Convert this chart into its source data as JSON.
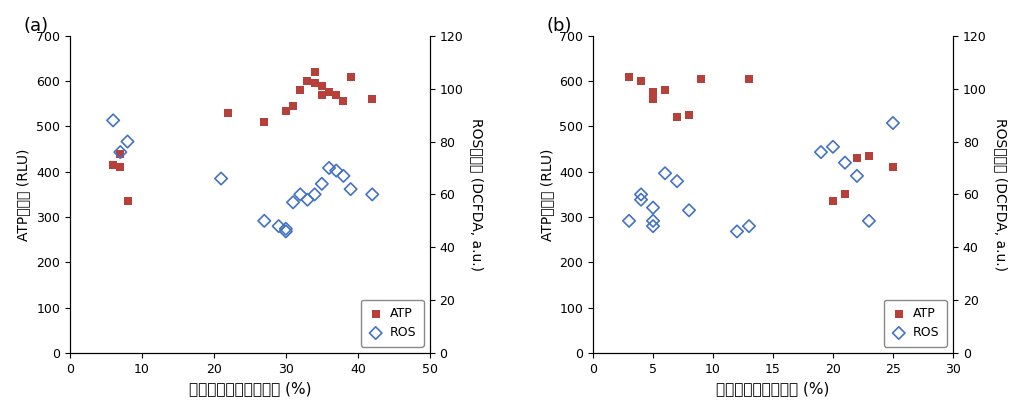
{
  "panel_a": {
    "label": "(a)",
    "xlabel": "線維型ミトコンドリア (%)",
    "xlim": [
      0,
      50
    ],
    "xticks": [
      0,
      10,
      20,
      30,
      40,
      50
    ],
    "atp_x": [
      6,
      7,
      7,
      8,
      22,
      27,
      30,
      31,
      32,
      33,
      34,
      34,
      35,
      35,
      36,
      37,
      38,
      39,
      42
    ],
    "atp_y": [
      415,
      410,
      440,
      335,
      530,
      510,
      535,
      545,
      580,
      600,
      620,
      595,
      590,
      570,
      575,
      570,
      555,
      610,
      560
    ],
    "ros_x": [
      6,
      7,
      8,
      21,
      27,
      29,
      30,
      30,
      31,
      32,
      33,
      34,
      35,
      36,
      37,
      38,
      39,
      42
    ],
    "ros_y": [
      88,
      76,
      80,
      66,
      50,
      48,
      47,
      46,
      57,
      60,
      58,
      60,
      64,
      70,
      69,
      67,
      62,
      60
    ]
  },
  "panel_b": {
    "label": "(b)",
    "xlabel": "丸型ミトコンドリア (%)",
    "xlim": [
      0,
      30
    ],
    "xticks": [
      0,
      5,
      10,
      15,
      20,
      25,
      30
    ],
    "atp_x": [
      3,
      4,
      5,
      5,
      6,
      7,
      8,
      9,
      13,
      20,
      21,
      22,
      23,
      25
    ],
    "atp_y": [
      610,
      600,
      560,
      575,
      580,
      520,
      525,
      605,
      605,
      335,
      350,
      430,
      435,
      410
    ],
    "ros_x": [
      3,
      4,
      4,
      5,
      5,
      5,
      6,
      7,
      8,
      12,
      13,
      19,
      20,
      21,
      22,
      23,
      25
    ],
    "ros_y": [
      50,
      58,
      60,
      55,
      50,
      48,
      68,
      65,
      54,
      46,
      48,
      76,
      78,
      72,
      67,
      50,
      87
    ]
  },
  "ylim_atp": [
    0,
    700
  ],
  "yticks_atp": [
    0,
    100,
    200,
    300,
    400,
    500,
    600,
    700
  ],
  "ylim_ros": [
    0,
    120
  ],
  "yticks_ros": [
    0,
    20,
    40,
    60,
    80,
    100,
    120
  ],
  "ylabel_left": "ATPレベル (RLU)",
  "ylabel_right": "ROSレベル (DCFDA, a.u.)",
  "atp_color": "#b5413a",
  "ros_color": "#4472c4",
  "bg_color": "#ffffff"
}
